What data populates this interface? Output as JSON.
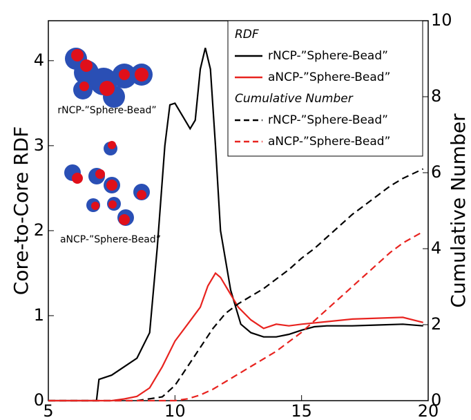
{
  "chart_data": {
    "type": "line",
    "xlabel": null,
    "ylabel": "Core-to-Core RDF",
    "y2label": "Cumulative Number",
    "xlim": [
      5,
      20
    ],
    "ylim": [
      0,
      4.47
    ],
    "y2lim": [
      0,
      10
    ],
    "xticks": [
      5,
      10,
      15,
      20
    ],
    "yticks": [
      0,
      1,
      2,
      3,
      4
    ],
    "y2ticks": [
      0,
      2,
      4,
      6,
      8,
      10
    ],
    "legend_titles": [
      "RDF",
      "Cumulative Number"
    ],
    "annotations": [
      "rNCP-”Sphere-Bead”",
      "aNCP-”Sphere-Bead”"
    ],
    "series": [
      {
        "name": "rNCP-”Sphere-Bead”",
        "color": "#000000",
        "dashed": false,
        "x": [
          5,
          6.9,
          7.0,
          7.5,
          8.0,
          8.5,
          9.0,
          9.3,
          9.6,
          9.8,
          10.0,
          10.3,
          10.6,
          10.8,
          11.0,
          11.2,
          11.4,
          11.6,
          11.8,
          12.2,
          12.6,
          13.0,
          13.5,
          14.0,
          14.5,
          15.0,
          15.5,
          16.0,
          17.0,
          18.0,
          19.0,
          19.8
        ],
        "values": [
          0,
          0,
          0.25,
          0.3,
          0.4,
          0.5,
          0.8,
          1.8,
          3.0,
          3.48,
          3.5,
          3.35,
          3.2,
          3.3,
          3.9,
          4.15,
          3.9,
          3.0,
          2.0,
          1.3,
          0.9,
          0.8,
          0.75,
          0.75,
          0.78,
          0.83,
          0.87,
          0.88,
          0.88,
          0.89,
          0.9,
          0.88
        ]
      },
      {
        "name": "aNCP-”Sphere-Bead”",
        "color": "#e8231f",
        "dashed": false,
        "x": [
          5,
          7.5,
          8.0,
          8.5,
          9.0,
          9.5,
          10.0,
          10.5,
          11.0,
          11.3,
          11.6,
          11.8,
          12.1,
          12.5,
          13.0,
          13.5,
          14.0,
          14.5,
          15.0,
          16.0,
          17.0,
          18.0,
          19.0,
          19.8
        ],
        "values": [
          0,
          0,
          0.02,
          0.05,
          0.15,
          0.4,
          0.7,
          0.9,
          1.1,
          1.35,
          1.5,
          1.45,
          1.3,
          1.1,
          0.95,
          0.85,
          0.9,
          0.88,
          0.9,
          0.93,
          0.96,
          0.97,
          0.98,
          0.92
        ]
      },
      {
        "name": "rNCP-”Sphere-Bead”",
        "color": "#000000",
        "dashed": true,
        "axis": "y2",
        "x": [
          5,
          8.5,
          9.0,
          9.5,
          10.0,
          10.5,
          11.0,
          11.5,
          12.0,
          12.5,
          13.0,
          13.5,
          14.0,
          14.5,
          15.0,
          15.5,
          16.0,
          16.5,
          17.0,
          17.5,
          18.0,
          18.5,
          19.0,
          19.8
        ],
        "values": [
          0,
          0,
          0.05,
          0.1,
          0.4,
          0.9,
          1.4,
          1.9,
          2.3,
          2.55,
          2.75,
          2.95,
          3.2,
          3.45,
          3.75,
          4.0,
          4.3,
          4.6,
          4.9,
          5.15,
          5.4,
          5.65,
          5.85,
          6.1
        ]
      },
      {
        "name": "aNCP-”Sphere-Bead”",
        "color": "#e8231f",
        "dashed": true,
        "axis": "y2",
        "x": [
          5,
          10.0,
          10.5,
          11.0,
          11.5,
          12.0,
          12.5,
          13.0,
          13.5,
          14.0,
          14.5,
          15.0,
          15.5,
          16.0,
          16.5,
          17.0,
          17.5,
          18.0,
          18.5,
          19.0,
          19.8
        ],
        "values": [
          0,
          0,
          0.05,
          0.15,
          0.3,
          0.5,
          0.7,
          0.9,
          1.1,
          1.3,
          1.55,
          1.8,
          2.1,
          2.4,
          2.7,
          3.0,
          3.3,
          3.6,
          3.9,
          4.15,
          4.45
        ]
      }
    ]
  }
}
